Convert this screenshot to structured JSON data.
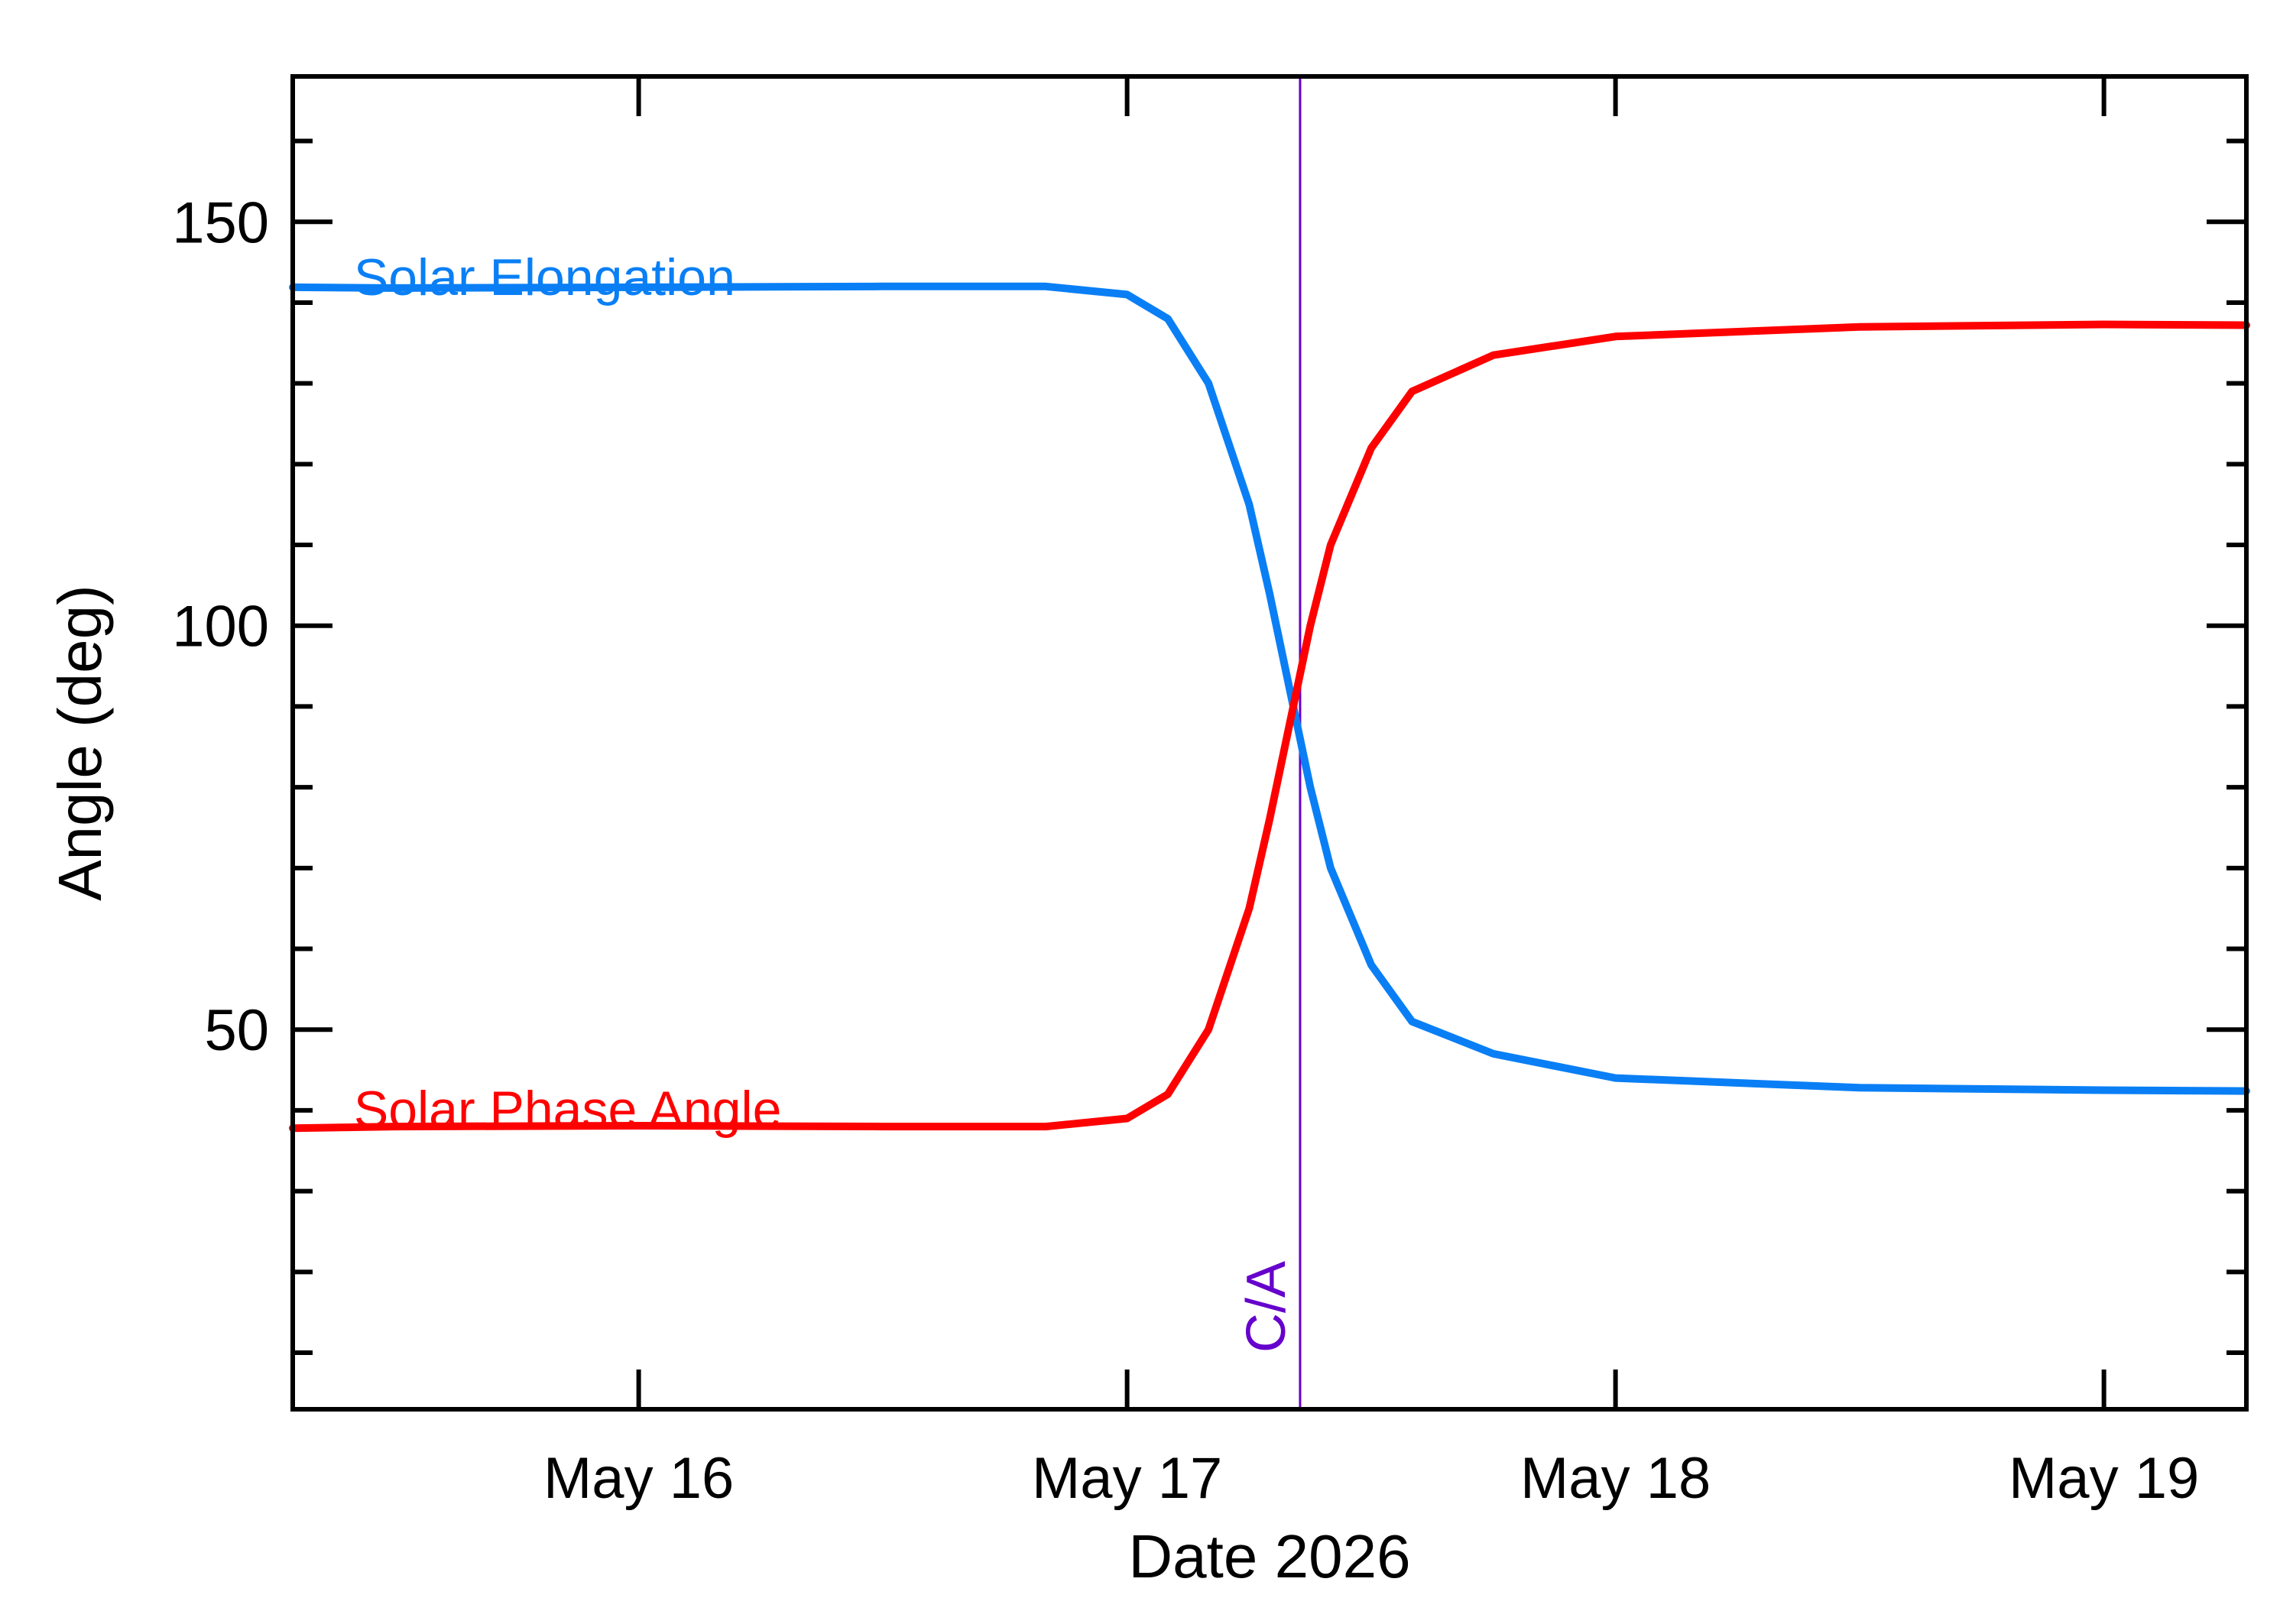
{
  "chart_data": {
    "type": "line",
    "xlabel": "Date 2026",
    "ylabel": "Angle (deg)",
    "xlim": [
      "2026-05-15T07:00",
      "2026-05-19T07:00"
    ],
    "ylim": [
      3,
      168
    ],
    "x_ticks": [
      {
        "label": "May 16",
        "date": "2026-05-16"
      },
      {
        "label": "May 17",
        "date": "2026-05-17"
      },
      {
        "label": "May 18",
        "date": "2026-05-18"
      },
      {
        "label": "May 19",
        "date": "2026-05-19"
      }
    ],
    "y_ticks": [
      50,
      100,
      150
    ],
    "y_minor_step": 10,
    "grid": false,
    "closest_approach": {
      "label": "C/A",
      "date": "2026-05-17T08:30",
      "color": "#6600cc"
    },
    "series": [
      {
        "name": "Solar Elongation",
        "color": "#0a7ff5",
        "label_date": "2026-05-15T10:00",
        "label_value": 143,
        "points": [
          [
            "2026-05-15T07:00",
            141.9
          ],
          [
            "2026-05-15T12:00",
            141.8
          ],
          [
            "2026-05-16T00:00",
            141.9
          ],
          [
            "2026-05-16T12:00",
            142.0
          ],
          [
            "2026-05-16T20:00",
            142.0
          ],
          [
            "2026-05-17T00:00",
            141.0
          ],
          [
            "2026-05-17T02:00",
            138.0
          ],
          [
            "2026-05-17T04:00",
            130.0
          ],
          [
            "2026-05-17T06:00",
            115.0
          ],
          [
            "2026-05-17T07:00",
            104.0
          ],
          [
            "2026-05-17T08:00",
            92.0
          ],
          [
            "2026-05-17T09:00",
            80.0
          ],
          [
            "2026-05-17T10:00",
            70.0
          ],
          [
            "2026-05-17T12:00",
            58.0
          ],
          [
            "2026-05-17T14:00",
            51.0
          ],
          [
            "2026-05-17T18:00",
            47.0
          ],
          [
            "2026-05-18T00:00",
            44.0
          ],
          [
            "2026-05-18T12:00",
            42.8
          ],
          [
            "2026-05-19T00:00",
            42.5
          ],
          [
            "2026-05-19T07:00",
            42.4
          ]
        ]
      },
      {
        "name": "Solar Phase Angle",
        "color": "#ff0000",
        "label_date": "2026-05-15T10:00",
        "label_value": 40,
        "points": [
          [
            "2026-05-15T07:00",
            37.8
          ],
          [
            "2026-05-15T12:00",
            38.0
          ],
          [
            "2026-05-16T00:00",
            38.1
          ],
          [
            "2026-05-16T12:00",
            38.0
          ],
          [
            "2026-05-16T20:00",
            38.0
          ],
          [
            "2026-05-17T00:00",
            39.0
          ],
          [
            "2026-05-17T02:00",
            42.0
          ],
          [
            "2026-05-17T04:00",
            50.0
          ],
          [
            "2026-05-17T06:00",
            65.0
          ],
          [
            "2026-05-17T07:00",
            76.0
          ],
          [
            "2026-05-17T08:00",
            88.0
          ],
          [
            "2026-05-17T09:00",
            100.0
          ],
          [
            "2026-05-17T10:00",
            110.0
          ],
          [
            "2026-05-17T12:00",
            122.0
          ],
          [
            "2026-05-17T14:00",
            129.0
          ],
          [
            "2026-05-17T18:00",
            133.5
          ],
          [
            "2026-05-18T00:00",
            135.8
          ],
          [
            "2026-05-18T12:00",
            137.0
          ],
          [
            "2026-05-19T00:00",
            137.3
          ],
          [
            "2026-05-19T07:00",
            137.2
          ]
        ]
      }
    ]
  }
}
